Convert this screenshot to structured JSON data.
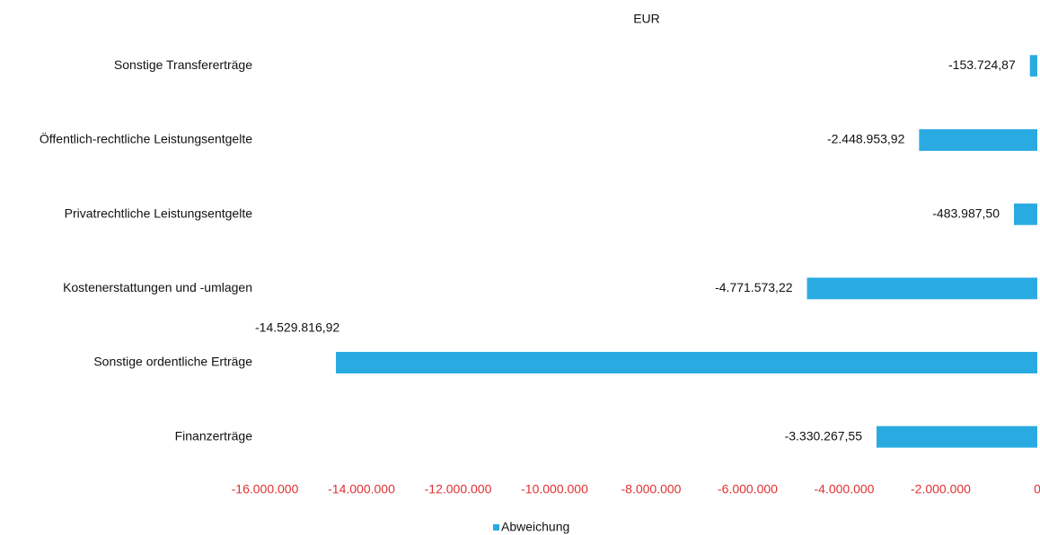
{
  "chart_data": {
    "type": "bar",
    "orientation": "horizontal",
    "title": "EUR",
    "categories": [
      "Sonstige Transfererträge",
      "Öffentlich-rechtliche Leistungsentgelte",
      "Privatrechtliche Leistungsentgelte",
      "Kostenerstattungen und -umlagen",
      "Sonstige ordentliche Erträge",
      "Finanzerträge"
    ],
    "series": [
      {
        "name": "Abweichung",
        "color": "#29abe2",
        "values": [
          -153724.87,
          -2448953.92,
          -483987.5,
          -4771573.22,
          -14529816.92,
          -3330267.55
        ],
        "value_labels": [
          "-153.724,87",
          "-2.448.953,92",
          "-483.987,50",
          "-4.771.573,22",
          "-14.529.816,92",
          "-3.330.267,55"
        ]
      }
    ],
    "xlim": [
      -16000000,
      0
    ],
    "xticks": [
      {
        "value": -16000000,
        "label": "-16.000.000"
      },
      {
        "value": -14000000,
        "label": "-14.000.000"
      },
      {
        "value": -12000000,
        "label": "-12.000.000"
      },
      {
        "value": -10000000,
        "label": "-10.000.000"
      },
      {
        "value": -8000000,
        "label": "-8.000.000"
      },
      {
        "value": -6000000,
        "label": "-6.000.000"
      },
      {
        "value": -4000000,
        "label": "-4.000.000"
      },
      {
        "value": -2000000,
        "label": "-2.000.000"
      },
      0
    ],
    "tick_label_color": "#e03030",
    "grid": false,
    "legend": "bottom"
  }
}
